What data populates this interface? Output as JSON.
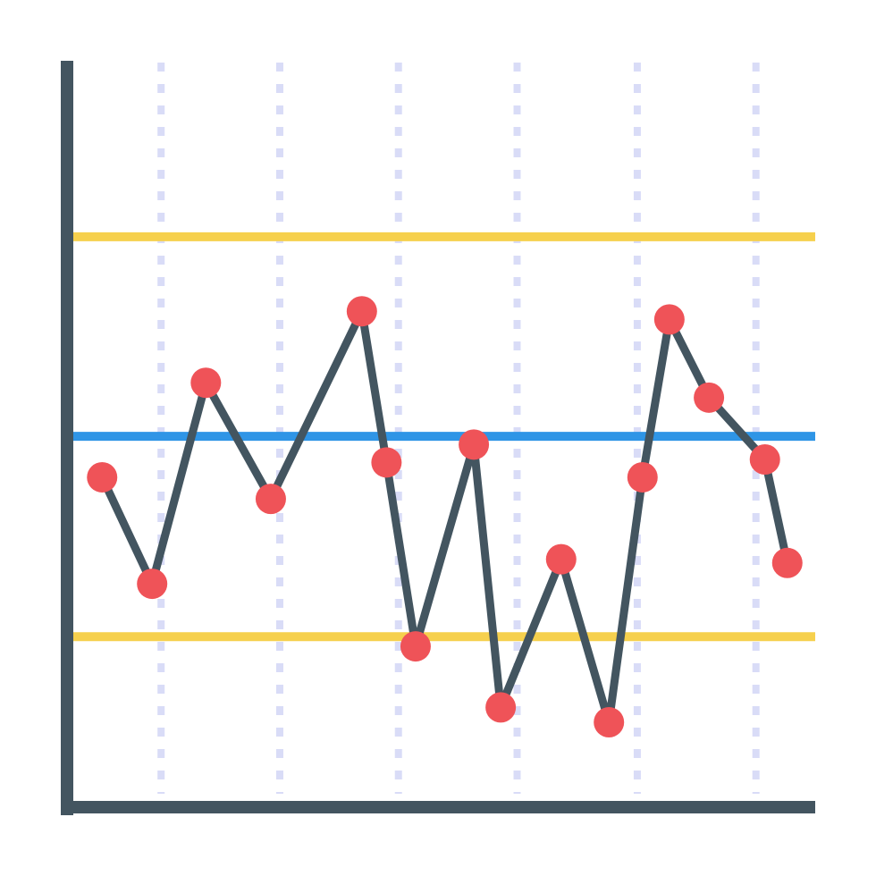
{
  "chart_data": {
    "type": "line",
    "x": [
      4.7,
      11.4,
      18.6,
      27.3,
      39.5,
      42.8,
      46.7,
      54.5,
      58.1,
      66.2,
      72.6,
      77.1,
      80.7,
      86.0,
      93.5,
      96.5
    ],
    "series": [
      {
        "color": "#435560",
        "marker_color": "#ef5358",
        "values": [
          44.3,
          30.0,
          57.0,
          41.4,
          66.6,
          46.3,
          21.6,
          48.7,
          13.4,
          33.3,
          11.4,
          44.3,
          65.5,
          55.0,
          46.7,
          32.8
        ]
      }
    ],
    "reference_lines": [
      {
        "value": 76.6,
        "color": "#f6d04d"
      },
      {
        "value": 49.8,
        "color": "#2f95e6"
      },
      {
        "value": 22.9,
        "color": "#f6d04d"
      }
    ],
    "xlim": [
      0,
      100
    ],
    "ylim": [
      0,
      100
    ],
    "xticks": [
      12.6,
      28.5,
      44.4,
      60.3,
      76.4,
      92.3
    ],
    "grid": true,
    "grid_color": "#d9dcf7",
    "axis_color": "#435560"
  }
}
